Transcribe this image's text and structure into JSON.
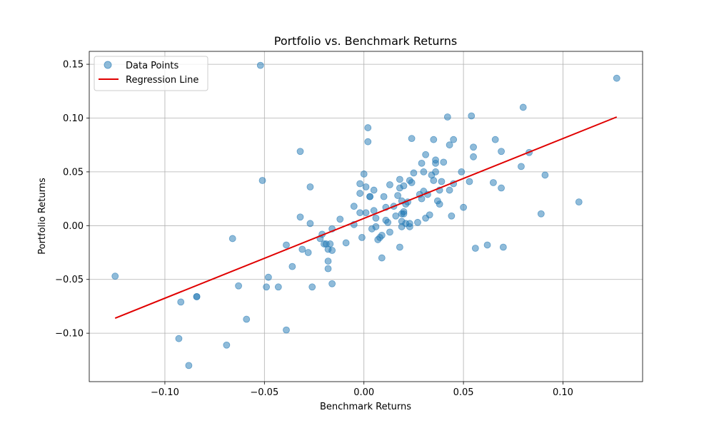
{
  "chart_data": {
    "type": "scatter",
    "title": "Portfolio vs. Benchmark Returns",
    "xlabel": "Benchmark Returns",
    "ylabel": "Portfolio Returns",
    "xlim": [
      -0.138,
      0.14
    ],
    "ylim": [
      -0.145,
      0.162
    ],
    "x_ticks": [
      -0.1,
      -0.05,
      0.0,
      0.05,
      0.1
    ],
    "x_tick_labels": [
      "−0.10",
      "−0.05",
      "0.00",
      "0.05",
      "0.10"
    ],
    "y_ticks": [
      -0.1,
      -0.05,
      0.0,
      0.05,
      0.1,
      0.15
    ],
    "y_tick_labels": [
      "−0.10",
      "−0.05",
      "0.00",
      "0.05",
      "0.10",
      "0.15"
    ],
    "grid": true,
    "legend_position": "top-left",
    "colors": {
      "points": "#1f77b4",
      "regression": "#e00000"
    },
    "series": [
      {
        "name": "Data Points",
        "kind": "scatter",
        "points": [
          [
            -0.125,
            -0.047
          ],
          [
            -0.093,
            -0.105
          ],
          [
            -0.092,
            -0.071
          ],
          [
            -0.088,
            -0.13
          ],
          [
            -0.084,
            -0.066
          ],
          [
            -0.084,
            -0.066
          ],
          [
            -0.069,
            -0.111
          ],
          [
            -0.066,
            -0.012
          ],
          [
            -0.063,
            -0.056
          ],
          [
            -0.059,
            -0.087
          ],
          [
            -0.052,
            0.149
          ],
          [
            -0.051,
            0.042
          ],
          [
            -0.049,
            -0.057
          ],
          [
            -0.048,
            -0.048
          ],
          [
            -0.043,
            -0.057
          ],
          [
            -0.039,
            -0.018
          ],
          [
            -0.039,
            -0.097
          ],
          [
            -0.036,
            -0.038
          ],
          [
            -0.032,
            0.069
          ],
          [
            -0.032,
            0.008
          ],
          [
            -0.031,
            -0.022
          ],
          [
            -0.028,
            -0.025
          ],
          [
            -0.027,
            0.036
          ],
          [
            -0.027,
            0.002
          ],
          [
            -0.026,
            -0.057
          ],
          [
            -0.022,
            -0.012
          ],
          [
            -0.021,
            -0.008
          ],
          [
            -0.02,
            -0.017
          ],
          [
            -0.019,
            -0.017
          ],
          [
            -0.018,
            -0.022
          ],
          [
            -0.018,
            -0.033
          ],
          [
            -0.018,
            -0.04
          ],
          [
            -0.017,
            -0.017
          ],
          [
            -0.016,
            -0.003
          ],
          [
            -0.016,
            -0.023
          ],
          [
            -0.016,
            -0.054
          ],
          [
            -0.012,
            0.006
          ],
          [
            -0.009,
            -0.016
          ],
          [
            -0.005,
            0.018
          ],
          [
            -0.005,
            0.001
          ],
          [
            -0.002,
            0.039
          ],
          [
            -0.002,
            0.03
          ],
          [
            -0.002,
            0.012
          ],
          [
            -0.001,
            -0.011
          ],
          [
            0.0,
            0.048
          ],
          [
            0.001,
            0.036
          ],
          [
            0.001,
            0.012
          ],
          [
            0.002,
            0.091
          ],
          [
            0.002,
            0.078
          ],
          [
            0.003,
            0.027
          ],
          [
            0.003,
            0.027
          ],
          [
            0.004,
            -0.003
          ],
          [
            0.005,
            0.033
          ],
          [
            0.005,
            0.014
          ],
          [
            0.006,
            0.007
          ],
          [
            0.006,
            -0.001
          ],
          [
            0.007,
            -0.013
          ],
          [
            0.008,
            -0.011
          ],
          [
            0.009,
            -0.009
          ],
          [
            0.009,
            -0.03
          ],
          [
            0.01,
            0.027
          ],
          [
            0.011,
            0.017
          ],
          [
            0.011,
            0.005
          ],
          [
            0.012,
            0.003
          ],
          [
            0.013,
            0.038
          ],
          [
            0.013,
            -0.006
          ],
          [
            0.015,
            0.018
          ],
          [
            0.016,
            0.009
          ],
          [
            0.017,
            0.028
          ],
          [
            0.018,
            0.043
          ],
          [
            0.018,
            0.035
          ],
          [
            0.018,
            -0.02
          ],
          [
            0.019,
            0.011
          ],
          [
            0.019,
            0.023
          ],
          [
            0.019,
            -0.001
          ],
          [
            0.019,
            0.004
          ],
          [
            0.02,
            0.011
          ],
          [
            0.02,
            0.013
          ],
          [
            0.02,
            0.037
          ],
          [
            0.021,
            0.002
          ],
          [
            0.021,
            0.02
          ],
          [
            0.022,
            0.022
          ],
          [
            0.023,
            -0.001
          ],
          [
            0.023,
            0.002
          ],
          [
            0.023,
            0.042
          ],
          [
            0.024,
            0.081
          ],
          [
            0.024,
            0.04
          ],
          [
            0.025,
            0.049
          ],
          [
            0.027,
            0.003
          ],
          [
            0.028,
            0.029
          ],
          [
            0.029,
            0.058
          ],
          [
            0.029,
            0.025
          ],
          [
            0.03,
            0.05
          ],
          [
            0.03,
            0.032
          ],
          [
            0.031,
            0.066
          ],
          [
            0.031,
            0.007
          ],
          [
            0.032,
            0.029
          ],
          [
            0.033,
            0.01
          ],
          [
            0.034,
            0.047
          ],
          [
            0.035,
            0.08
          ],
          [
            0.035,
            0.042
          ],
          [
            0.036,
            0.058
          ],
          [
            0.036,
            0.05
          ],
          [
            0.036,
            0.061
          ],
          [
            0.037,
            0.023
          ],
          [
            0.038,
            0.033
          ],
          [
            0.038,
            0.02
          ],
          [
            0.039,
            0.041
          ],
          [
            0.04,
            0.059
          ],
          [
            0.042,
            0.101
          ],
          [
            0.043,
            0.075
          ],
          [
            0.043,
            0.033
          ],
          [
            0.044,
            0.009
          ],
          [
            0.045,
            0.08
          ],
          [
            0.045,
            0.039
          ],
          [
            0.049,
            0.05
          ],
          [
            0.05,
            0.017
          ],
          [
            0.053,
            0.041
          ],
          [
            0.054,
            0.102
          ],
          [
            0.055,
            0.073
          ],
          [
            0.055,
            0.064
          ],
          [
            0.056,
            -0.021
          ],
          [
            0.062,
            -0.018
          ],
          [
            0.065,
            0.04
          ],
          [
            0.066,
            0.08
          ],
          [
            0.069,
            0.069
          ],
          [
            0.069,
            0.035
          ],
          [
            0.07,
            -0.02
          ],
          [
            0.079,
            0.055
          ],
          [
            0.08,
            0.11
          ],
          [
            0.083,
            0.068
          ],
          [
            0.089,
            0.011
          ],
          [
            0.091,
            0.047
          ],
          [
            0.108,
            0.022
          ],
          [
            0.127,
            0.137
          ]
        ]
      },
      {
        "name": "Regression Line",
        "kind": "line",
        "x": [
          -0.125,
          0.127
        ],
        "y": [
          -0.086,
          0.101
        ]
      }
    ]
  }
}
